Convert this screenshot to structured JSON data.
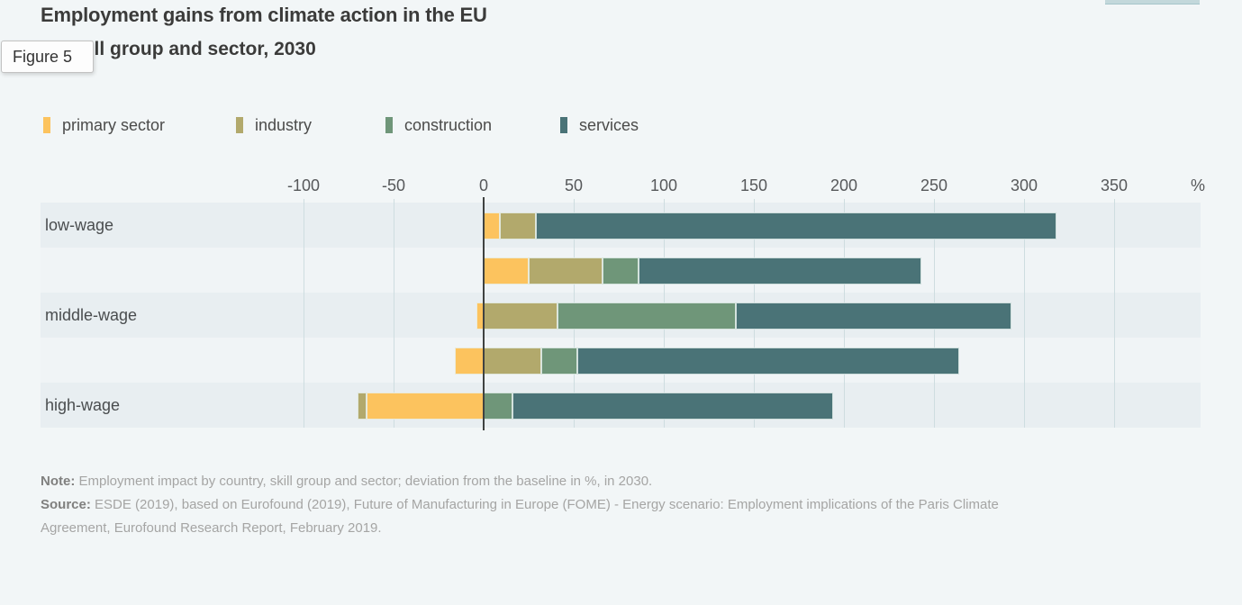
{
  "figure_label": "Figure 5",
  "header": {
    "title": "Employment gains from climate action in the EU",
    "subtitle": "by skill group and sector, 2030"
  },
  "legend": [
    {
      "label": "primary sector",
      "color": "#fcc35e"
    },
    {
      "label": "industry",
      "color": "#b2a96c"
    },
    {
      "label": "construction",
      "color": "#6f9679"
    },
    {
      "label": "services",
      "color": "#4a7377"
    }
  ],
  "chart_data": {
    "type": "bar",
    "orientation": "horizontal",
    "stacked": true,
    "unit": "%",
    "axis_ticks": [
      -100,
      -50,
      0,
      50,
      100,
      150,
      200,
      250,
      300,
      350
    ],
    "axis_unit_label": "%",
    "xlim": [
      -140,
      395
    ],
    "grid": true,
    "categories": [
      "low-wage",
      "",
      "middle-wage",
      "",
      "high-wage"
    ],
    "series": [
      {
        "name": "primary sector",
        "color": "#fcc35e",
        "values": [
          9,
          25,
          -4,
          -16,
          -65
        ]
      },
      {
        "name": "industry",
        "color": "#b2a96c",
        "values": [
          20,
          41,
          41,
          32,
          -5
        ]
      },
      {
        "name": "construction",
        "color": "#6f9679",
        "values": [
          0,
          20,
          99,
          20,
          16
        ]
      },
      {
        "name": "services",
        "color": "#4a7377",
        "values": [
          289,
          157,
          153,
          212,
          178
        ]
      }
    ]
  },
  "note": {
    "label": "Note:",
    "text": "Employment impact by country, skill group and sector; deviation from the baseline in %, in 2030."
  },
  "source": {
    "label": "Source:",
    "text": "ESDE (2019), based on Eurofound (2019), Future of Manufacturing in Europe (FOME) - Energy scenario: Employment implications of the Paris Climate Agreement, Eurofound Research Report, February 2019."
  }
}
